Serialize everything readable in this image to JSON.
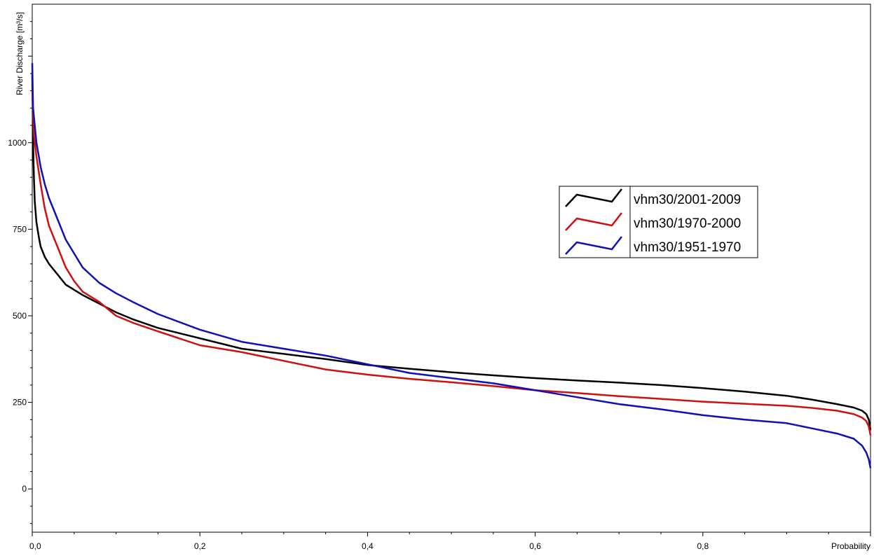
{
  "chart_data": {
    "type": "line",
    "xlabel": "Probability",
    "ylabel": "River Discharge [m³/s]",
    "xlim": [
      0,
      1.0
    ],
    "ylim": [
      -125,
      1400
    ],
    "x_ticks": [
      0,
      0.2,
      0.4,
      0.6,
      0.8
    ],
    "x_tick_labels": [
      "0,0",
      "0,2",
      "0,4",
      "0,6",
      "0,8"
    ],
    "y_ticks": [
      0,
      250,
      500,
      750,
      1000
    ],
    "y_tick_labels": [
      "0",
      "250",
      "500",
      "750",
      "1000"
    ],
    "grid": true,
    "legend_position": "center-right",
    "series": [
      {
        "name": "vhm30/2001-2009",
        "color": "#000000",
        "x": [
          0,
          0.001,
          0.002,
          0.003,
          0.005,
          0.008,
          0.01,
          0.015,
          0.02,
          0.03,
          0.04,
          0.05,
          0.06,
          0.08,
          0.1,
          0.12,
          0.15,
          0.2,
          0.25,
          0.3,
          0.35,
          0.4,
          0.45,
          0.5,
          0.55,
          0.6,
          0.65,
          0.7,
          0.75,
          0.8,
          0.85,
          0.9,
          0.93,
          0.96,
          0.98,
          0.99,
          0.995,
          0.998,
          1.0
        ],
        "values": [
          1200,
          1000,
          900,
          830,
          770,
          725,
          700,
          670,
          650,
          620,
          590,
          575,
          560,
          535,
          510,
          490,
          465,
          435,
          405,
          390,
          375,
          358,
          347,
          337,
          328,
          320,
          313,
          307,
          300,
          291,
          281,
          269,
          258,
          245,
          235,
          226,
          216,
          200,
          170
        ]
      },
      {
        "name": "vhm30/1970-2000",
        "color": "#d01010",
        "x": [
          0,
          0.002,
          0.005,
          0.01,
          0.015,
          0.02,
          0.03,
          0.04,
          0.05,
          0.06,
          0.08,
          0.1,
          0.12,
          0.15,
          0.2,
          0.25,
          0.3,
          0.35,
          0.4,
          0.45,
          0.5,
          0.55,
          0.6,
          0.65,
          0.7,
          0.75,
          0.8,
          0.85,
          0.9,
          0.93,
          0.96,
          0.98,
          0.99,
          0.995,
          0.998,
          1.0
        ],
        "values": [
          1150,
          1020,
          960,
          880,
          810,
          760,
          700,
          640,
          600,
          570,
          540,
          500,
          480,
          455,
          415,
          395,
          370,
          345,
          330,
          318,
          308,
          297,
          285,
          277,
          268,
          260,
          252,
          246,
          240,
          234,
          226,
          216,
          206,
          196,
          180,
          155
        ]
      },
      {
        "name": "vhm30/1951-1970",
        "color": "#1010b8",
        "x": [
          0,
          0.001,
          0.003,
          0.005,
          0.01,
          0.015,
          0.02,
          0.03,
          0.04,
          0.05,
          0.06,
          0.08,
          0.1,
          0.12,
          0.15,
          0.2,
          0.25,
          0.3,
          0.35,
          0.4,
          0.45,
          0.5,
          0.55,
          0.6,
          0.65,
          0.7,
          0.75,
          0.8,
          0.85,
          0.9,
          0.93,
          0.96,
          0.98,
          0.99,
          0.995,
          0.998,
          1.0
        ],
        "values": [
          1230,
          1100,
          1050,
          1000,
          930,
          880,
          840,
          780,
          720,
          680,
          640,
          595,
          565,
          540,
          505,
          460,
          425,
          405,
          385,
          360,
          335,
          320,
          305,
          285,
          265,
          245,
          230,
          213,
          200,
          190,
          175,
          160,
          145,
          125,
          105,
          85,
          60
        ]
      }
    ]
  }
}
